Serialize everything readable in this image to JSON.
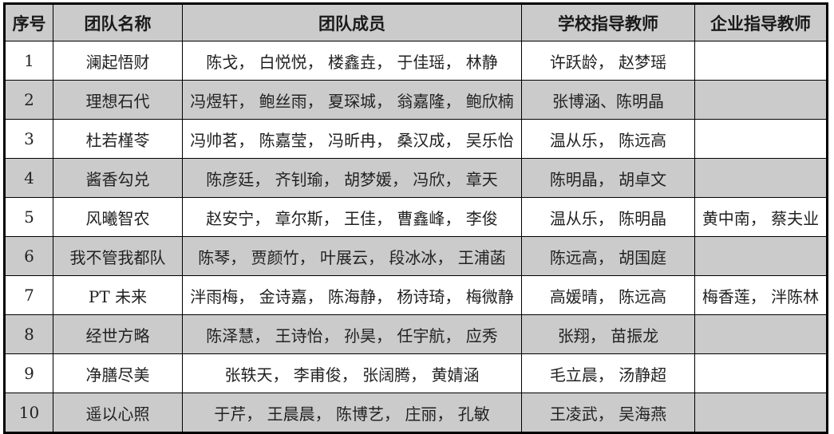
{
  "colors": {
    "border": "#000000",
    "header_bg": "#cbcbcb",
    "stripe_bg": "#cbcbcb",
    "row_bg": "#ffffff"
  },
  "table": {
    "columns": [
      "序号",
      "团队名称",
      "团队成员",
      "学校指导教师",
      "企业指导教师"
    ],
    "rows": [
      {
        "no": "1",
        "team": "澜起悟财",
        "members": "陈戈， 白悦悦， 楼鑫垚， 于佳瑶， 林静",
        "school": "许跃龄， 赵梦瑶",
        "enterprise": ""
      },
      {
        "no": "2",
        "team": "理想石代",
        "members": "冯煜轩， 鲍丝雨， 夏琛城， 翁嘉隆， 鲍欣楠",
        "school": "张博涵、陈明晶",
        "enterprise": ""
      },
      {
        "no": "3",
        "team": "杜若槿苓",
        "members": "冯帅茗， 陈嘉莹， 冯昕冉， 桑汉成， 吴乐怡",
        "school": "温从乐， 陈远高",
        "enterprise": ""
      },
      {
        "no": "4",
        "team": "酱香勾兑",
        "members": "陈彦廷， 齐钊瑜， 胡梦媛， 冯欣， 章天",
        "school": "陈明晶， 胡卓文",
        "enterprise": ""
      },
      {
        "no": "5",
        "team": "风曦智农",
        "members": "赵安宁， 章尔斯， 王佳， 曹鑫峰， 李俊",
        "school": "温从乐， 陈明晶",
        "enterprise": "黄中南， 蔡夫业"
      },
      {
        "no": "6",
        "team": "我不管我都队",
        "members": "陈琴， 贾颜竹， 叶展云， 段冰冰， 王浦菡",
        "school": "陈远高， 胡国庭",
        "enterprise": ""
      },
      {
        "no": "7",
        "team": "PT 未来",
        "members": "泮雨梅， 金诗嘉， 陈海静， 杨诗琦， 梅微静",
        "school": "高媛晴， 陈远高",
        "enterprise": "梅香莲， 泮陈林"
      },
      {
        "no": "8",
        "team": "经世方略",
        "members": "陈泽慧， 王诗怡， 孙昊， 任宇航， 应秀",
        "school": "张翔， 苗振龙",
        "enterprise": ""
      },
      {
        "no": "9",
        "team": "净膳尽美",
        "members": "张轶天， 李甫俊， 张阔腾， 黄婧涵",
        "school": "毛立晨， 汤静超",
        "enterprise": ""
      },
      {
        "no": "10",
        "team": "遥以心照",
        "members": "于芹， 王晨晨， 陈博艺， 庄丽， 孔敏",
        "school": "王凌武， 吴海燕",
        "enterprise": ""
      }
    ]
  }
}
